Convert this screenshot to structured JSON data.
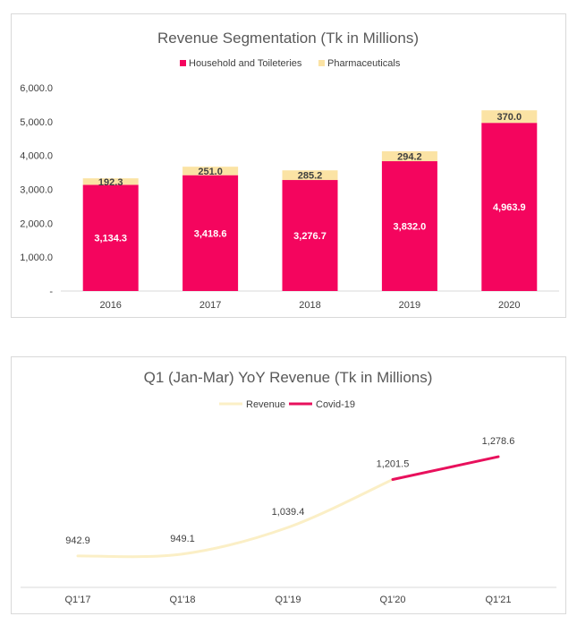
{
  "chart_data": [
    {
      "type": "bar",
      "stacked": true,
      "title": "Revenue Segmentation (Tk in Millions)",
      "categories": [
        "2016",
        "2017",
        "2018",
        "2019",
        "2020"
      ],
      "series": [
        {
          "name": "Household and Toileteries",
          "color": "#f4055e",
          "values": [
            3134.3,
            3418.6,
            3276.7,
            3832.0,
            4963.9
          ],
          "labels": [
            "3,134.3",
            "3,418.6",
            "3,276.7",
            "3,832.0",
            "4,963.9"
          ]
        },
        {
          "name": "Pharmaceuticals",
          "color": "#fbe3a4",
          "values": [
            192.3,
            251.0,
            285.2,
            294.2,
            370.0
          ],
          "labels": [
            "192.3",
            "251.0",
            "285.2",
            "294.2",
            "370.0"
          ]
        }
      ],
      "ylim": [
        0,
        6000
      ],
      "yticks": [
        0,
        1000,
        2000,
        3000,
        4000,
        5000,
        6000
      ],
      "ytick_labels": [
        "-",
        "1,000.0",
        "2,000.0",
        "3,000.0",
        "4,000.0",
        "5,000.0",
        "6,000.0"
      ],
      "legend": "top",
      "grid": false
    },
    {
      "type": "line",
      "title": "Q1 (Jan-Mar) YoY Revenue (Tk in Millions)",
      "categories": [
        "Q1'17",
        "Q1'18",
        "Q1'19",
        "Q1'20",
        "Q1'21"
      ],
      "series": [
        {
          "name": "Revenue",
          "color": "#fbefc6",
          "values": [
            942.9,
            949.1,
            1039.4,
            1201.5,
            null
          ]
        },
        {
          "name": "Covid-19",
          "color": "#e8105c",
          "values": [
            null,
            null,
            null,
            1201.5,
            1278.6
          ]
        }
      ],
      "point_labels": [
        "942.9",
        "949.1",
        "1,039.4",
        "1,201.5",
        "1,278.6"
      ],
      "legend": "top",
      "grid": false
    }
  ]
}
